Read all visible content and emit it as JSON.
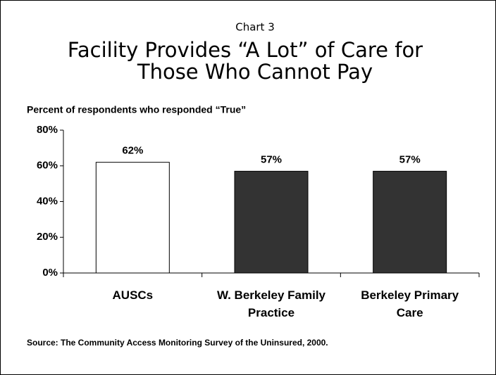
{
  "chart_data": {
    "type": "bar",
    "chart_label": "Chart 3",
    "title": [
      "Facility Provides “A Lot” of Care for",
      "Those Who Cannot Pay"
    ],
    "y_axis_label": "Percent of respondents who responded “True”",
    "categories": [
      "AUSCs",
      "W. Berkeley Family Practice",
      "Berkeley Primary Care"
    ],
    "values": [
      62,
      57,
      57
    ],
    "value_labels": [
      "62%",
      "57%",
      "57%"
    ],
    "colors": [
      "#ffffff",
      "#333333",
      "#333333"
    ],
    "ylim": [
      0,
      80
    ],
    "yticks": [
      {
        "value": 0,
        "label": "0%"
      },
      {
        "value": 20,
        "label": "20%"
      },
      {
        "value": 40,
        "label": "40%"
      },
      {
        "value": 60,
        "label": "60%"
      },
      {
        "value": 80,
        "label": "80%"
      }
    ],
    "source": "Source: The Community Access Monitoring Survey of the Uninsured,  2000."
  }
}
